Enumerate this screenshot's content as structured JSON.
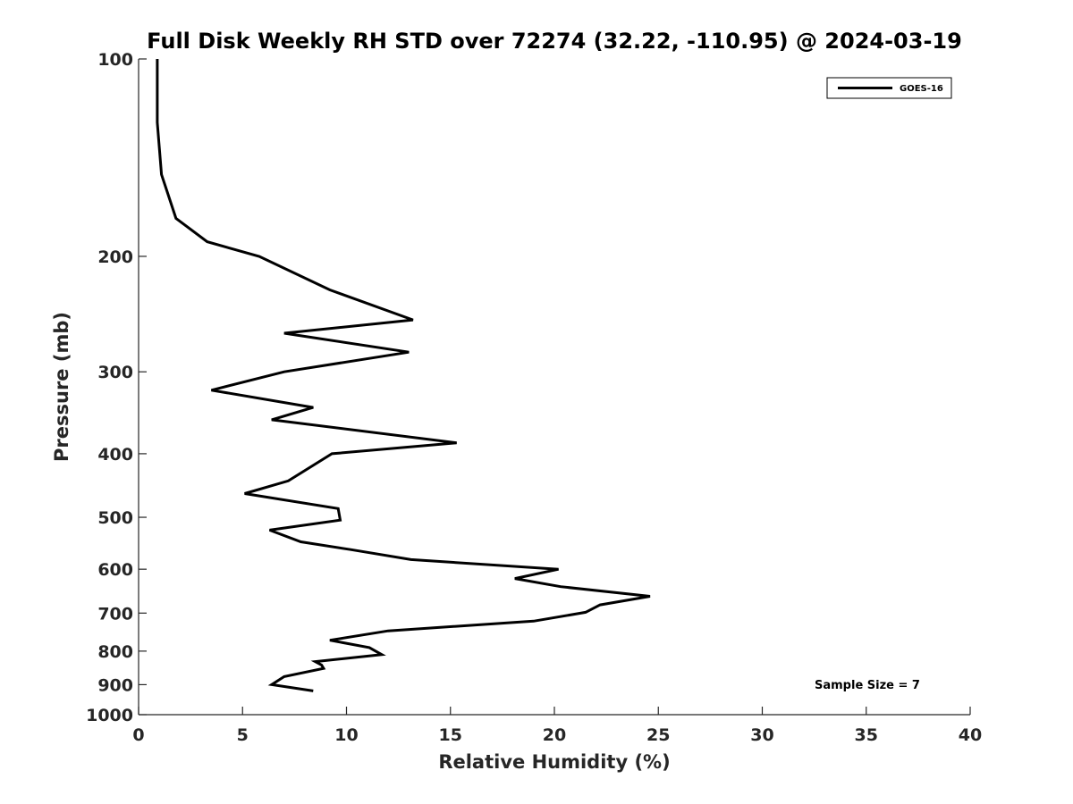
{
  "chart_data": {
    "type": "line",
    "title": "Full Disk Weekly RH STD over 72274 (32.22, -110.95) @ 2024-03-19",
    "xlabel": "Relative Humidity (%)",
    "ylabel": "Pressure (mb)",
    "xlim": [
      0,
      40
    ],
    "ylim": [
      100,
      1000
    ],
    "y_scale": "log",
    "y_reversed": true,
    "grid": false,
    "legend_position": "top-right",
    "x_ticks": [
      "0",
      "5",
      "10",
      "15",
      "20",
      "25",
      "30",
      "35",
      "40"
    ],
    "y_ticks": [
      "100",
      "200",
      "300",
      "400",
      "500",
      "600",
      "700",
      "800",
      "900",
      "1000"
    ],
    "annotation": "Sample Size = 7",
    "series": [
      {
        "name": "GOES-16",
        "color": "#000000",
        "points": [
          [
            0.9,
            100
          ],
          [
            0.9,
            125
          ],
          [
            1.1,
            150
          ],
          [
            1.8,
            175
          ],
          [
            3.3,
            190
          ],
          [
            5.8,
            200
          ],
          [
            9.2,
            225
          ],
          [
            13.2,
            250
          ],
          [
            7.0,
            262
          ],
          [
            13.0,
            280
          ],
          [
            7.0,
            300
          ],
          [
            3.5,
            320
          ],
          [
            8.4,
            340
          ],
          [
            6.4,
            355
          ],
          [
            15.3,
            385
          ],
          [
            9.3,
            400
          ],
          [
            7.2,
            440
          ],
          [
            5.1,
            460
          ],
          [
            9.6,
            485
          ],
          [
            9.7,
            505
          ],
          [
            6.3,
            523
          ],
          [
            7.8,
            545
          ],
          [
            10.2,
            560
          ],
          [
            13.1,
            580
          ],
          [
            20.2,
            600
          ],
          [
            18.1,
            620
          ],
          [
            20.3,
            638
          ],
          [
            24.6,
            660
          ],
          [
            22.2,
            680
          ],
          [
            21.5,
            698
          ],
          [
            19.0,
            720
          ],
          [
            12.0,
            745
          ],
          [
            9.2,
            770
          ],
          [
            11.1,
            790
          ],
          [
            11.7,
            810
          ],
          [
            8.5,
            830
          ],
          [
            8.8,
            840
          ],
          [
            8.9,
            850
          ],
          [
            7.0,
            875
          ],
          [
            6.4,
            900
          ],
          [
            8.4,
            920
          ]
        ]
      }
    ]
  }
}
